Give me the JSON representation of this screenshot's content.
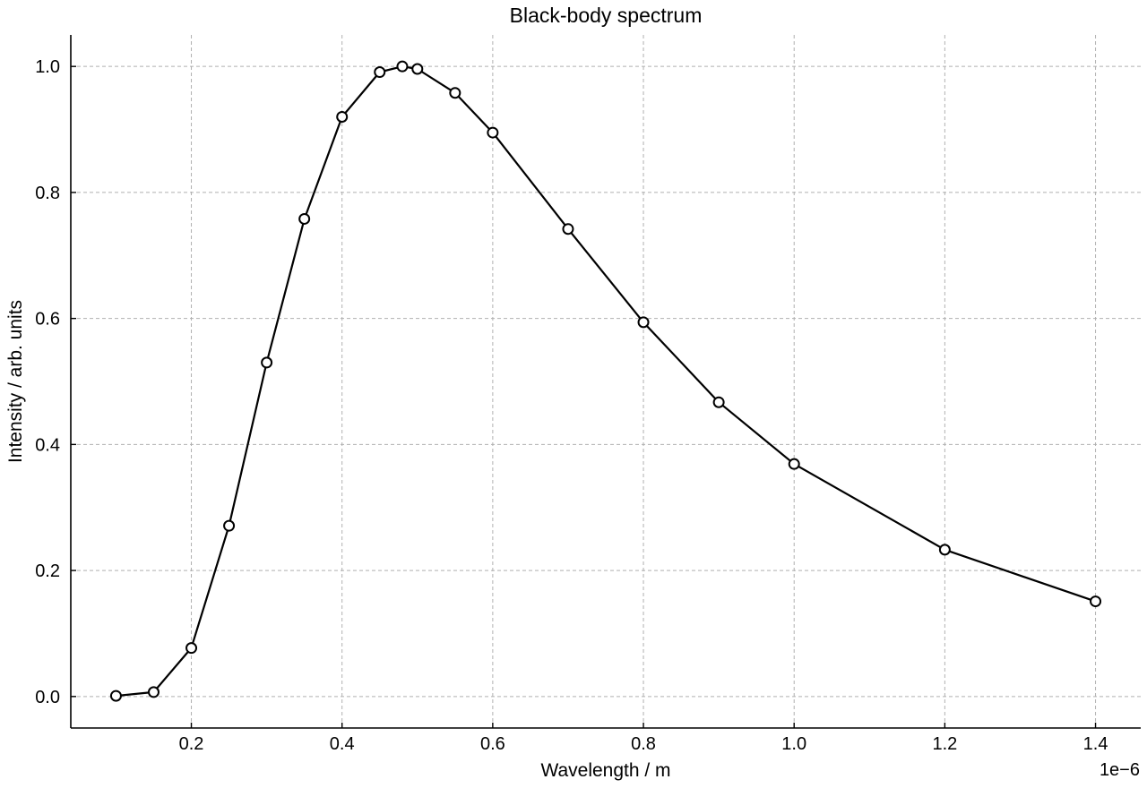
{
  "chart_data": {
    "type": "line",
    "title": "Black-body spectrum",
    "xlabel": "Wavelength / m",
    "ylabel": "Intensity / arb. units",
    "x_offset_label": "1e−6",
    "xlim": [
      0.04,
      1.46
    ],
    "ylim": [
      -0.05,
      1.05
    ],
    "grid": true,
    "x_ticks": [
      0.2,
      0.4,
      0.6,
      0.8,
      1.0,
      1.2,
      1.4
    ],
    "x_tick_labels": [
      "0.2",
      "0.4",
      "0.6",
      "0.8",
      "1.0",
      "1.2",
      "1.4"
    ],
    "y_ticks": [
      0.0,
      0.2,
      0.4,
      0.6,
      0.8,
      1.0
    ],
    "y_tick_labels": [
      "0.0",
      "0.2",
      "0.4",
      "0.6",
      "0.8",
      "1.0"
    ],
    "series": [
      {
        "x": [
          0.1,
          0.15,
          0.2,
          0.25,
          0.3,
          0.35,
          0.4,
          0.45,
          0.48,
          0.5,
          0.55,
          0.6,
          0.7,
          0.8,
          0.9,
          1.0,
          1.2,
          1.4
        ],
        "y": [
          0.001,
          0.007,
          0.077,
          0.271,
          0.53,
          0.758,
          0.92,
          0.991,
          1.0,
          0.996,
          0.958,
          0.895,
          0.742,
          0.594,
          0.467,
          0.369,
          0.233,
          0.151
        ],
        "color": "#000000",
        "marker": "open-circle"
      }
    ]
  }
}
